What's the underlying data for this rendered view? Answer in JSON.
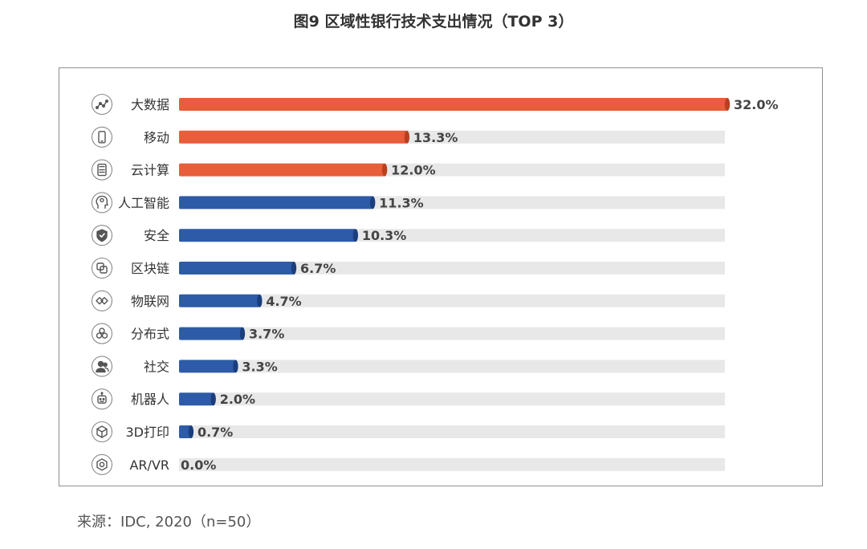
{
  "chart_data": {
    "type": "bar",
    "orientation": "horizontal",
    "title": "图9 区域性银行技术支出情况（TOP 3）",
    "categories": [
      "大数据",
      "移动",
      "云计算",
      "人工智能",
      "安全",
      "区块链",
      "物联网",
      "分布式",
      "社交",
      "机器人",
      "3D打印",
      "AR/VR"
    ],
    "values": [
      32.0,
      13.3,
      12.0,
      11.3,
      10.3,
      6.7,
      4.7,
      3.7,
      3.3,
      2.0,
      0.7,
      0.0
    ],
    "value_labels": [
      "32.0%",
      "13.3%",
      "12.0%",
      "11.3%",
      "10.3%",
      "6.7%",
      "4.7%",
      "3.7%",
      "3.3%",
      "2.0%",
      "0.7%",
      "0.0%"
    ],
    "icons": [
      "data-trend-icon",
      "mobile-phone-icon",
      "calculator-icon",
      "brain-head-icon",
      "shield-check-icon",
      "blocks-icon",
      "iot-link-icon",
      "distributed-nodes-icon",
      "social-users-icon",
      "robot-icon",
      "cube-3d-icon",
      "vr-hexagon-icon"
    ],
    "highlight_top_n": 3,
    "xlim": [
      0,
      32
    ],
    "xlabel": "",
    "ylabel": "",
    "source": "来源：IDC, 2020（n=50）",
    "colors": {
      "top": "#e85d3a",
      "top_cap": "#b8401f",
      "other": "#2e5ba8",
      "other_cap": "#1a3d7c",
      "track": "#e8e8e8",
      "icon": "#555555"
    }
  }
}
